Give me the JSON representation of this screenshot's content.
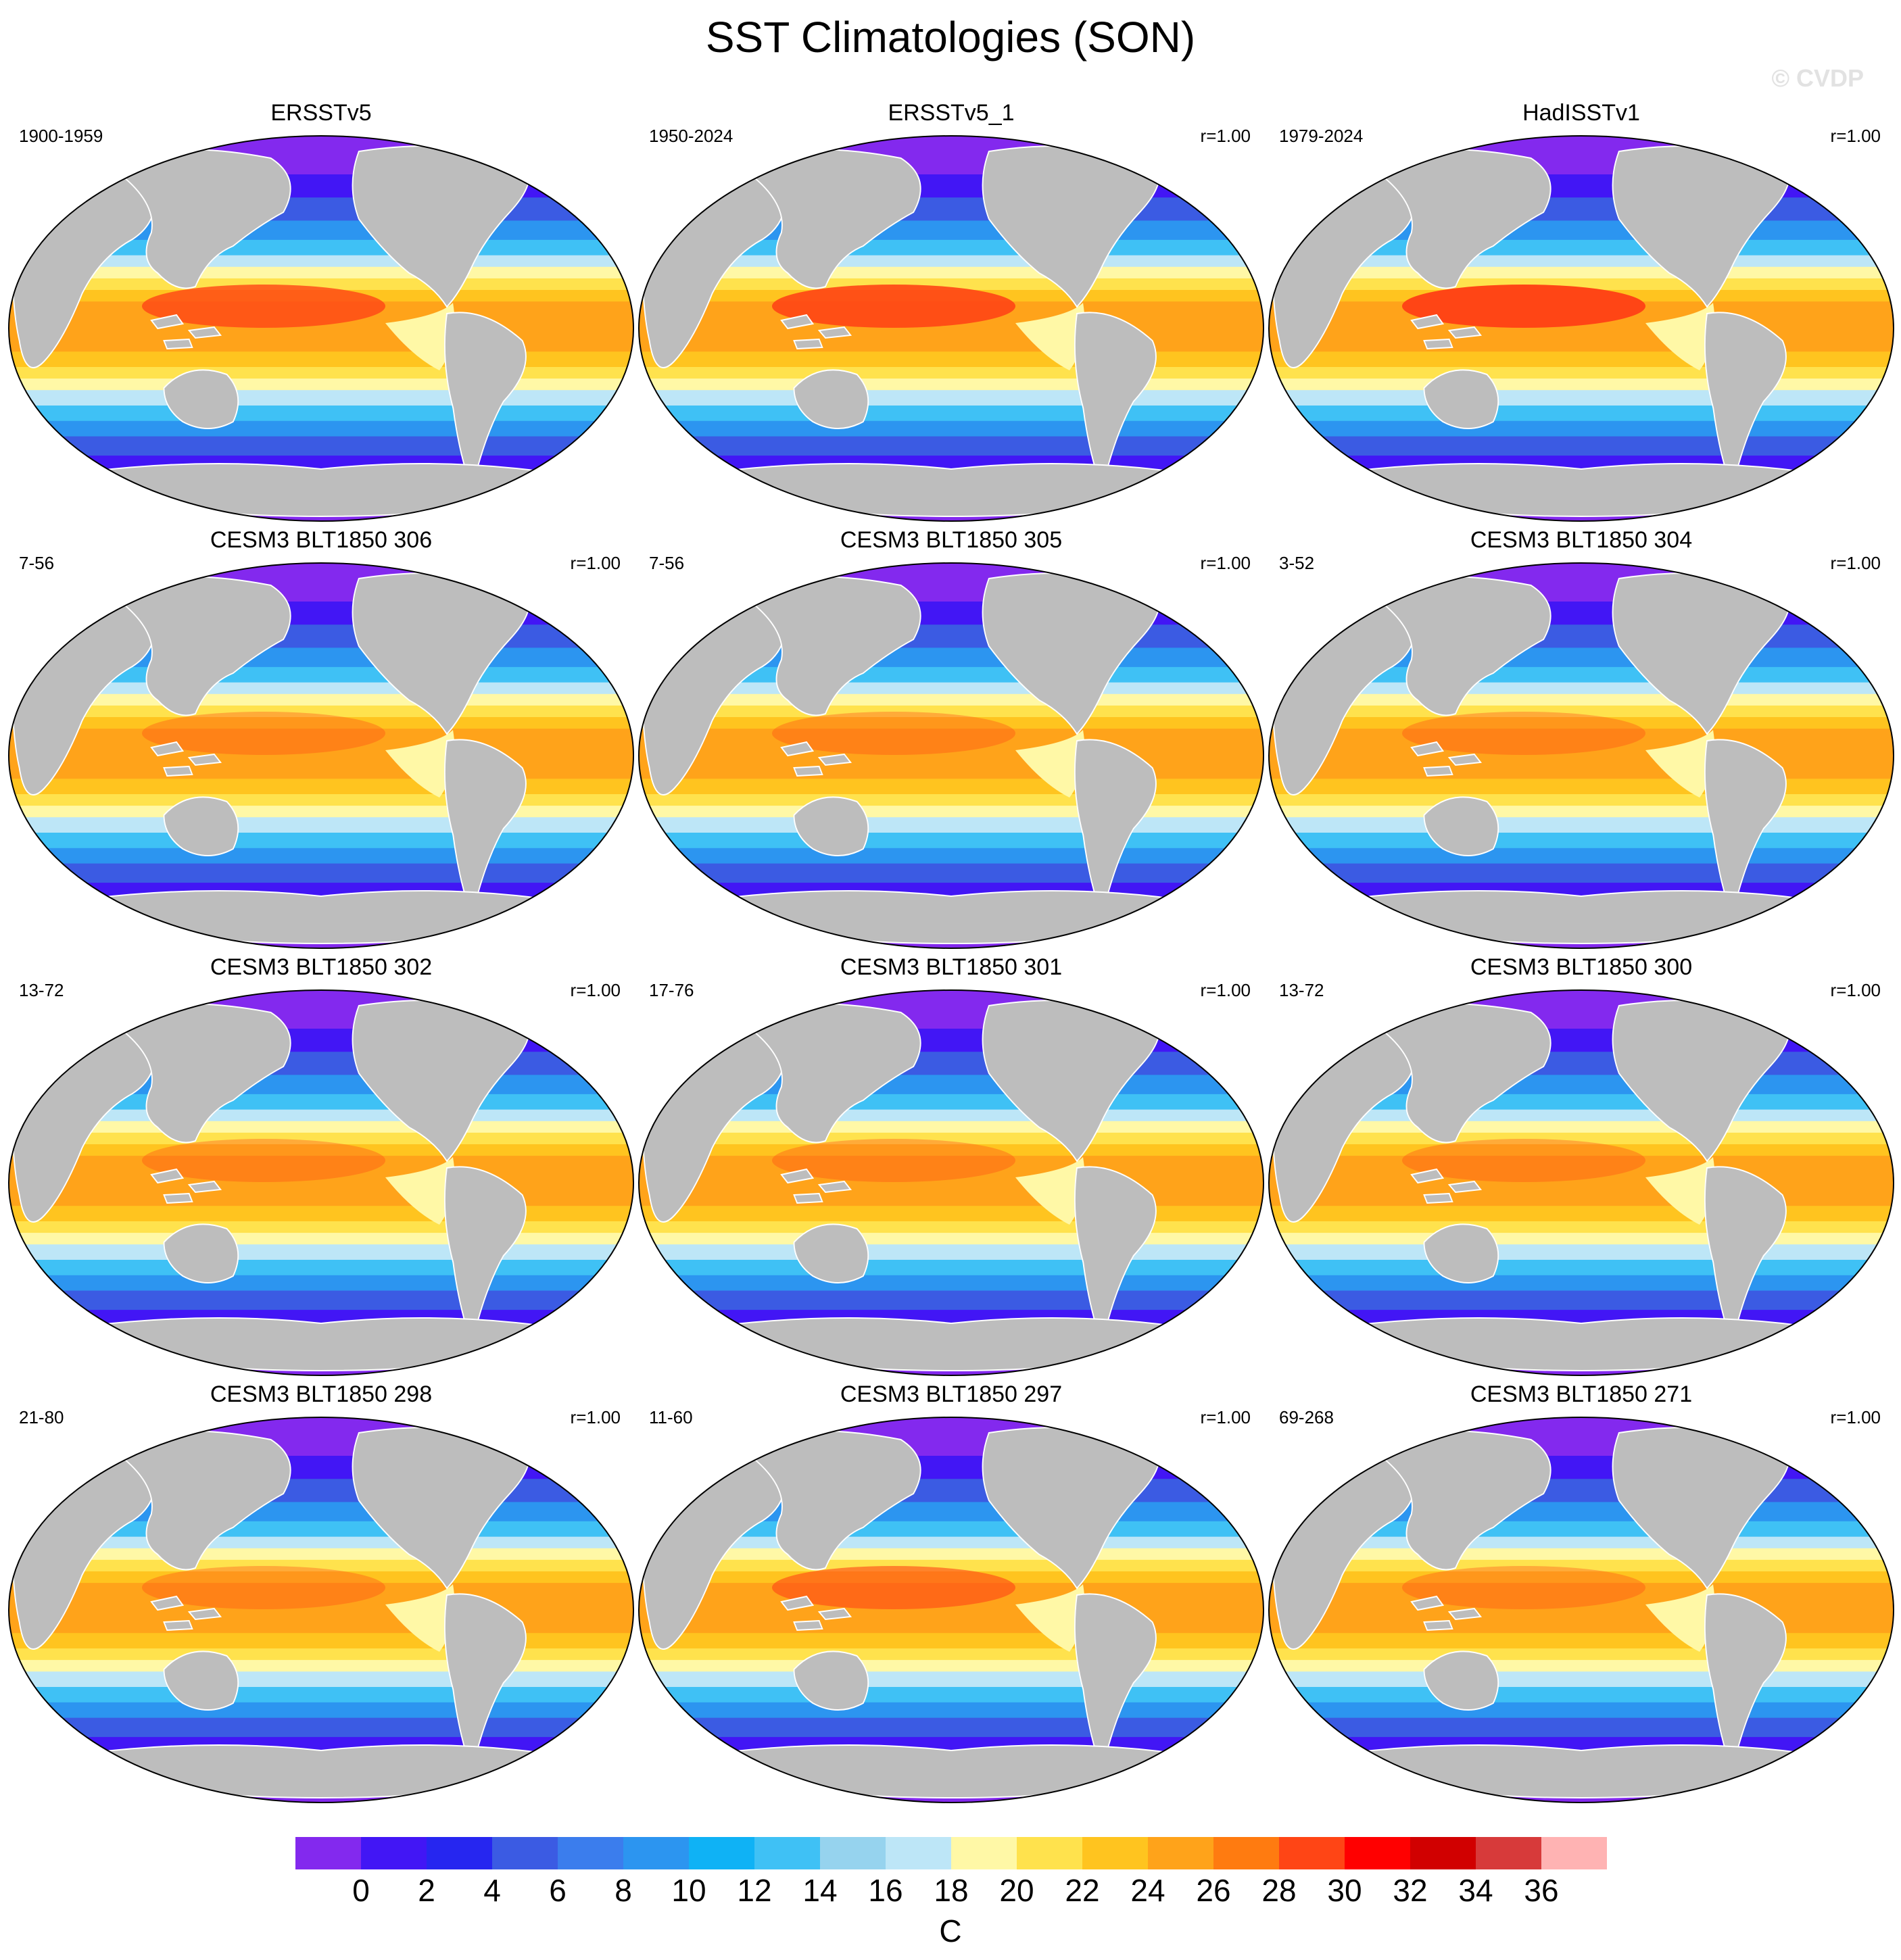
{
  "figure": {
    "title": "SST Climatologies (SON)",
    "watermark": "© CVDP",
    "units": "C"
  },
  "panels": [
    {
      "name": "ERSSTv5",
      "period": "1900-1959",
      "corr": "",
      "warm_pool": 0.8
    },
    {
      "name": "ERSSTv5_1",
      "period": "1950-2024",
      "corr": "r=1.00",
      "warm_pool": 0.9
    },
    {
      "name": "HadISSTv1",
      "period": "1979-2024",
      "corr": "r=1.00",
      "warm_pool": 1.0
    },
    {
      "name": "CESM3 BLT1850 306",
      "period": "7-56",
      "corr": "r=1.00",
      "warm_pool": 0.35
    },
    {
      "name": "CESM3 BLT1850 305",
      "period": "7-56",
      "corr": "r=1.00",
      "warm_pool": 0.35
    },
    {
      "name": "CESM3 BLT1850 304",
      "period": "3-52",
      "corr": "r=1.00",
      "warm_pool": 0.35
    },
    {
      "name": "CESM3 BLT1850 302",
      "period": "13-72",
      "corr": "r=1.00",
      "warm_pool": 0.35
    },
    {
      "name": "CESM3 BLT1850 301",
      "period": "17-76",
      "corr": "r=1.00",
      "warm_pool": 0.35
    },
    {
      "name": "CESM3 BLT1850 300",
      "period": "13-72",
      "corr": "r=1.00",
      "warm_pool": 0.35
    },
    {
      "name": "CESM3 BLT1850 298",
      "period": "21-80",
      "corr": "r=1.00",
      "warm_pool": 0.35
    },
    {
      "name": "CESM3 BLT1850 297",
      "period": "11-60",
      "corr": "r=1.00",
      "warm_pool": 0.6
    },
    {
      "name": "CESM3 BLT1850 271",
      "period": "69-268",
      "corr": "r=1.00",
      "warm_pool": 0.35
    }
  ],
  "colorbar": {
    "labels": [
      "0",
      "2",
      "4",
      "6",
      "8",
      "10",
      "12",
      "14",
      "16",
      "18",
      "20",
      "22",
      "24",
      "26",
      "28",
      "30",
      "32",
      "34",
      "36"
    ],
    "colors": [
      "#8329ee",
      "#4216f5",
      "#2626f0",
      "#3b5be3",
      "#3b7ded",
      "#2c95f0",
      "#0fb2f5",
      "#3fc1f5",
      "#96d3ee",
      "#bde6f7",
      "#fff8a6",
      "#ffe24d",
      "#ffc41f",
      "#ffa31a",
      "#ff7b10",
      "#ff4515",
      "#ff0000",
      "#d10000",
      "#d73a3a",
      "#ffb3b3"
    ]
  },
  "colors": {
    "land": "#bdbdbd",
    "background": "#ffffff"
  }
}
